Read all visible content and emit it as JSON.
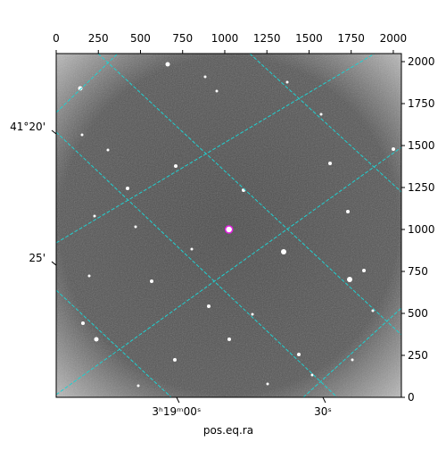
{
  "chart_data": {
    "type": "image",
    "xlabel": "pos.eq.ra",
    "xlim": [
      0,
      2048
    ],
    "xticks": [
      0,
      250,
      500,
      750,
      1000,
      1250,
      1500,
      1750,
      2000
    ],
    "ylim": [
      0,
      2048
    ],
    "yticks": [
      0,
      250,
      500,
      750,
      1000,
      1250,
      1500,
      1750,
      2000
    ],
    "ra_ticks": [
      {
        "value": 714,
        "label": "3ʰ19ᵐ00ˢ"
      },
      {
        "value": 1582,
        "label": "30ˢ"
      }
    ],
    "dec_ticks": [
      {
        "value": 1569,
        "label": "41°20'"
      },
      {
        "value": 787,
        "label": "25'"
      }
    ],
    "marker": {
      "x": 1025,
      "y": 1000,
      "color": "#e020e0"
    },
    "grid_color": "#20d0d0"
  }
}
